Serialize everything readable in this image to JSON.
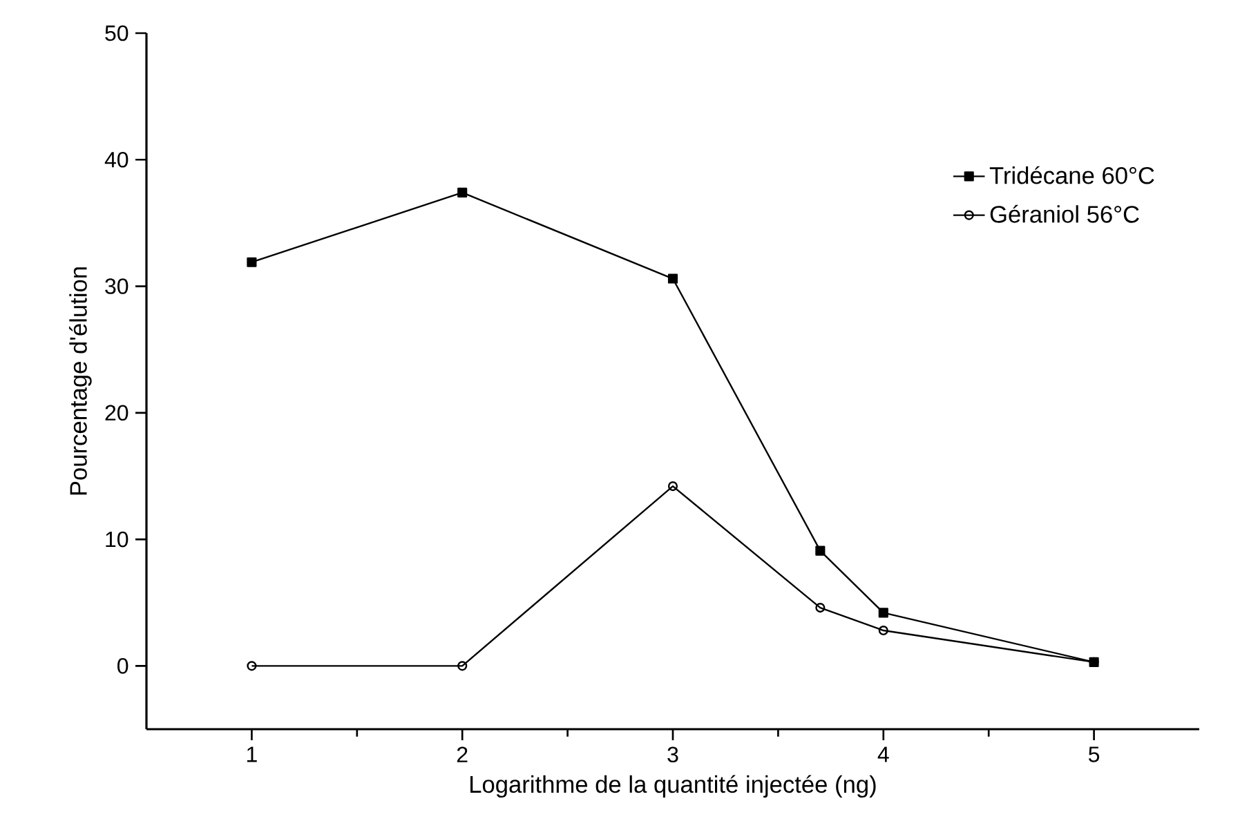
{
  "chart_data": {
    "type": "line",
    "xlabel": "Logarithme de la quantité injectée (ng)",
    "ylabel": "Pourcentage d'élution",
    "x": [
      1,
      2,
      3,
      3.7,
      4,
      5
    ],
    "series": [
      {
        "name": "Tridécane 60°C",
        "color": "#000000",
        "marker": "square",
        "values": [
          31.9,
          37.4,
          30.6,
          9.1,
          4.2,
          0.3
        ]
      },
      {
        "name": "Géraniol 56°C",
        "color": "#000000",
        "marker": "circle",
        "values": [
          0,
          0,
          14.2,
          4.6,
          2.8,
          0.3
        ]
      }
    ],
    "xlim": [
      0.5,
      5.5
    ],
    "ylim": [
      -5,
      50
    ],
    "xticks": [
      1,
      2,
      3,
      4,
      5
    ],
    "yticks": [
      0,
      10,
      20,
      30,
      40,
      50
    ],
    "legend": "top right"
  }
}
